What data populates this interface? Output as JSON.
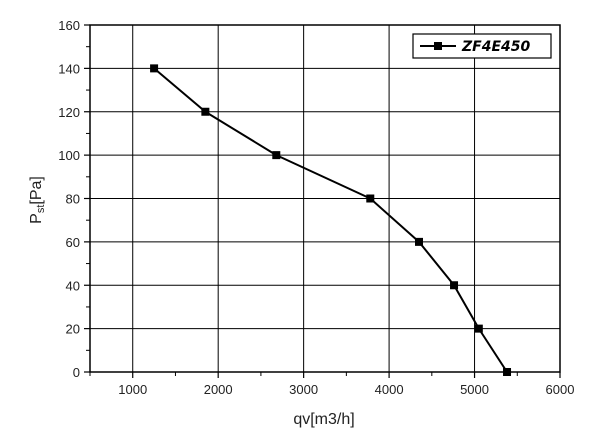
{
  "chart_data": {
    "type": "line",
    "title": "",
    "xlabel": "qv[m3/h]",
    "ylabel": {
      "main": "P",
      "sub": "st",
      "unit": "[Pa]"
    },
    "xlim": [
      500,
      6000
    ],
    "ylim": [
      0,
      160
    ],
    "xticks": [
      1000,
      2000,
      3000,
      4000,
      5000,
      6000
    ],
    "yticks": [
      0,
      20,
      40,
      60,
      80,
      100,
      120,
      140,
      160
    ],
    "grid": true,
    "legend_position": "top-right",
    "series": [
      {
        "name": "ZF4E450",
        "color": "#000000",
        "marker": "square",
        "points": [
          {
            "x": 1250,
            "y": 140
          },
          {
            "x": 1850,
            "y": 120
          },
          {
            "x": 2680,
            "y": 100
          },
          {
            "x": 3780,
            "y": 80
          },
          {
            "x": 4350,
            "y": 60
          },
          {
            "x": 4760,
            "y": 40
          },
          {
            "x": 5050,
            "y": 20
          },
          {
            "x": 5380,
            "y": 0
          }
        ]
      }
    ]
  }
}
